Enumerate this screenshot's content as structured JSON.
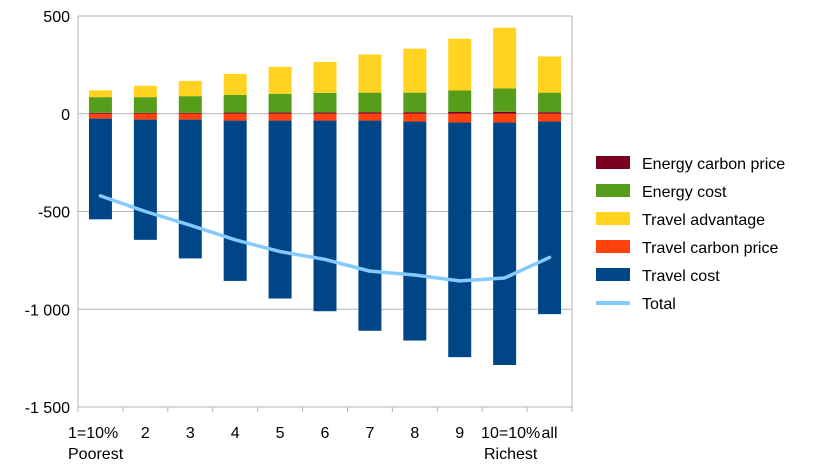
{
  "chart_data": {
    "type": "bar",
    "stacked": true,
    "categories": [
      "1=10%",
      "2",
      "3",
      "4",
      "5",
      "6",
      "7",
      "8",
      "9",
      "10=10%",
      "all"
    ],
    "category_sublabels": {
      "0": "Poorest",
      "9": "Richest"
    },
    "ylim": [
      -1500,
      500
    ],
    "yticks": [
      500,
      0,
      -500,
      -1000,
      -1500
    ],
    "ytick_labels": [
      "500",
      "0",
      "-500",
      "-1 000",
      "-1 500"
    ],
    "grid": true,
    "legend_position": "right",
    "series": [
      {
        "name": "Energy carbon price",
        "color": "#7b0020",
        "kind": "bar",
        "values": [
          5,
          5,
          5,
          6,
          7,
          7,
          8,
          8,
          9,
          10,
          8
        ]
      },
      {
        "name": "Energy cost",
        "color": "#579d1c",
        "kind": "bar",
        "values": [
          80,
          80,
          85,
          90,
          95,
          100,
          100,
          100,
          110,
          120,
          100
        ]
      },
      {
        "name": "Travel advantage",
        "color": "#ffd320",
        "kind": "bar",
        "values": [
          35,
          58,
          78,
          108,
          138,
          158,
          195,
          225,
          265,
          310,
          185
        ]
      },
      {
        "name": "Travel carbon price",
        "color": "#ff420e",
        "kind": "bar",
        "values": [
          -25,
          -30,
          -30,
          -35,
          -35,
          -35,
          -35,
          -40,
          -45,
          -45,
          -40
        ]
      },
      {
        "name": "Travel cost",
        "color": "#004586",
        "kind": "bar",
        "values": [
          -515,
          -615,
          -710,
          -820,
          -910,
          -975,
          -1075,
          -1120,
          -1200,
          -1240,
          -985
        ]
      },
      {
        "name": "Total",
        "color": "#83caff",
        "kind": "line",
        "values": [
          -420,
          -500,
          -570,
          -645,
          -705,
          -745,
          -805,
          -825,
          -855,
          -840,
          -735
        ]
      }
    ]
  }
}
